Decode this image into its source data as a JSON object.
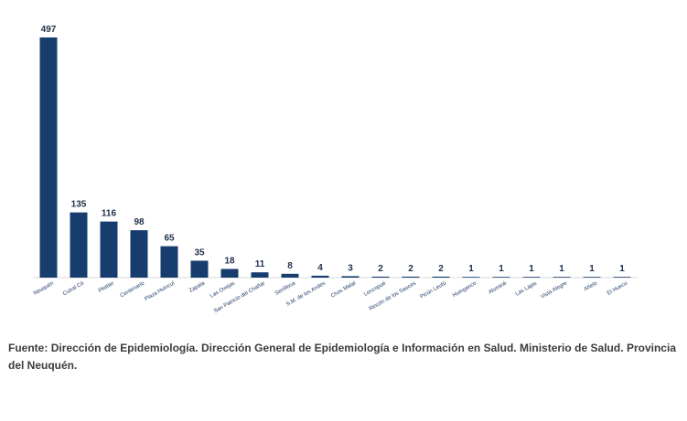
{
  "chart_data": {
    "type": "bar",
    "title": "",
    "xlabel": "",
    "ylabel": "",
    "ylim": [
      0,
      497
    ],
    "grid": false,
    "categories": [
      "Neuquén",
      "Cutral Có",
      "Plottier",
      "Centenario",
      "Plaza Huincul",
      "Zapala",
      "Las Ovejas",
      "San Patricio del Chañar",
      "Senillosa",
      "S.M. de los Andes",
      "Chos Malal",
      "Loncopué",
      "Rincón de los Sauces",
      "Picún Leufú",
      "Huinganco",
      "Aluminé",
      "Las Lajas",
      "Vista Alegre",
      "Añelo",
      "El Huecu"
    ],
    "values": [
      497,
      135,
      116,
      98,
      65,
      35,
      18,
      11,
      8,
      4,
      3,
      2,
      2,
      2,
      1,
      1,
      1,
      1,
      1,
      1
    ],
    "bar_color": "#173d6e"
  },
  "footer": {
    "source": "Fuente: Dirección de Epidemiología. Dirección General de Epidemiología e Información en Salud. Ministerio de Salud. Provincia del Neuquén."
  }
}
